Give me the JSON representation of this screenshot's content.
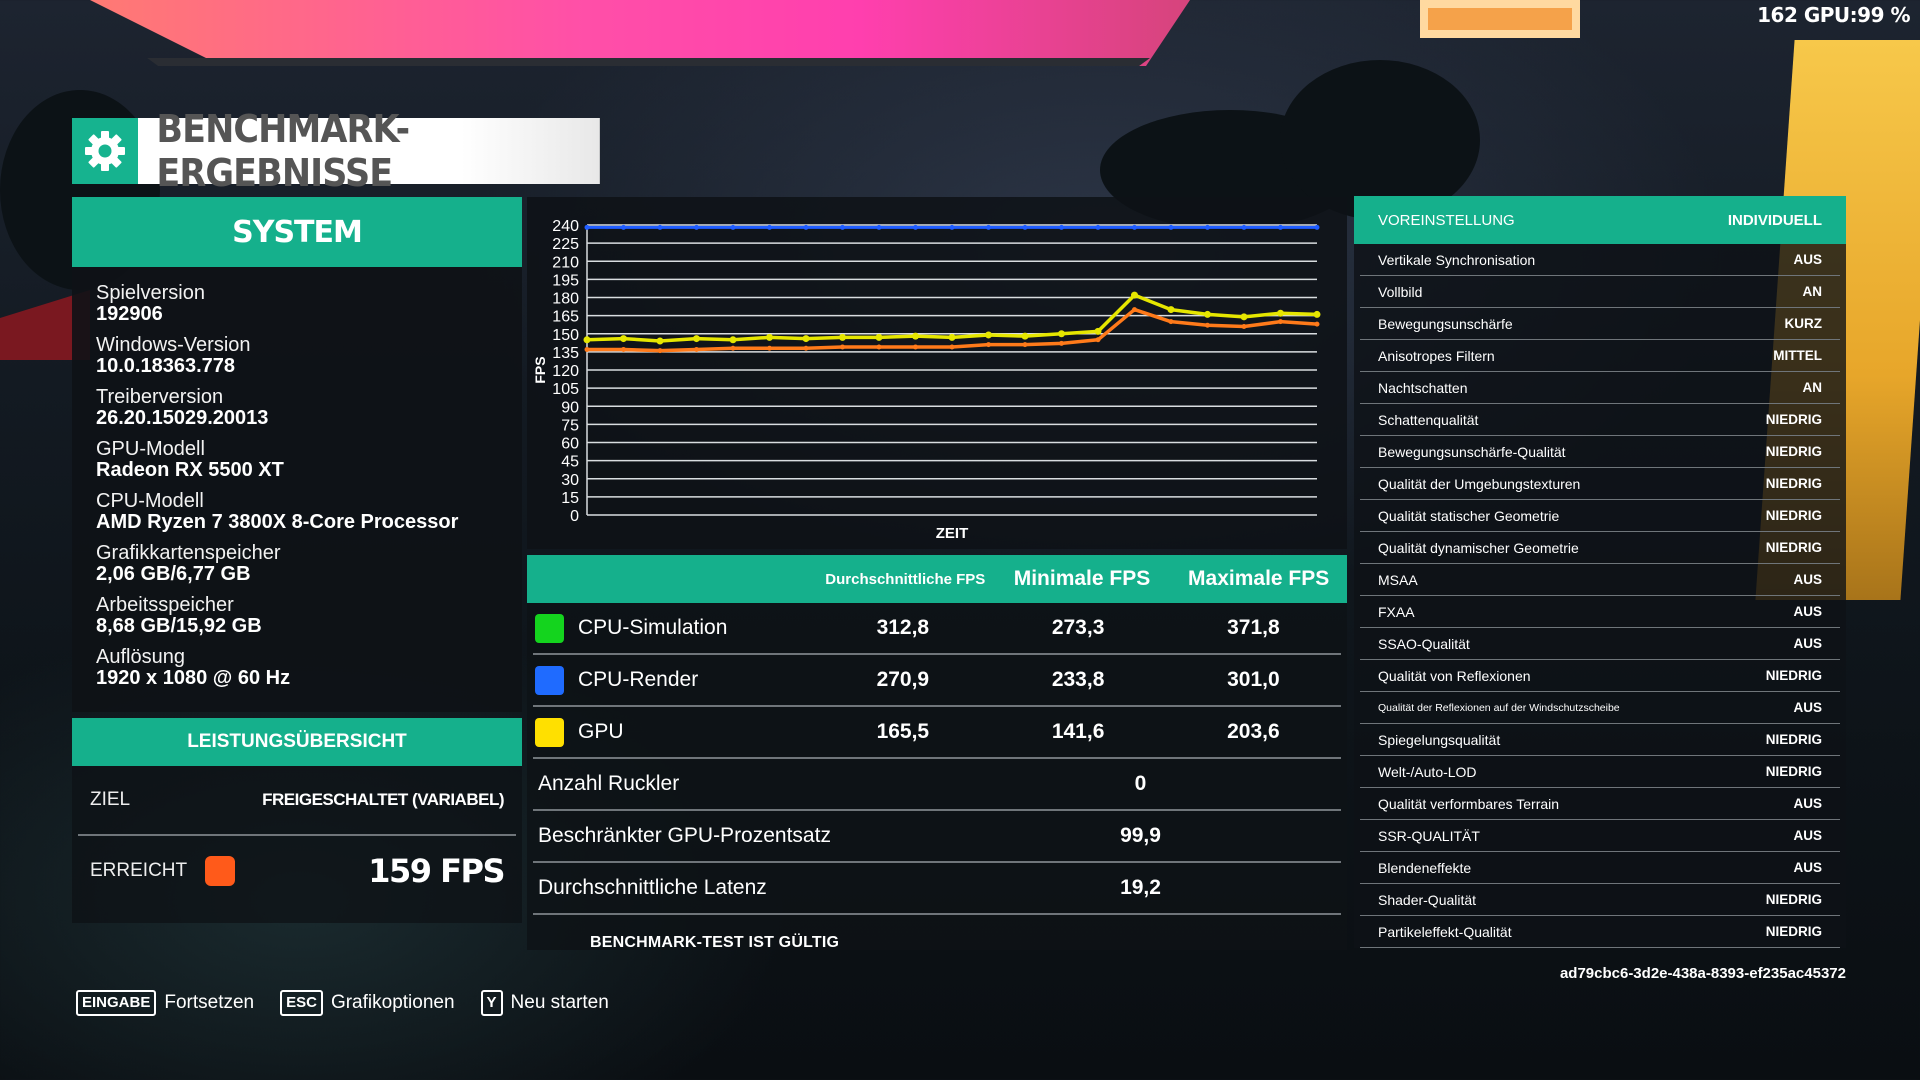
{
  "hud": {
    "topright": "162 GPU:99 %"
  },
  "title": "BENCHMARK-ERGEBNISSE",
  "system": {
    "header": "SYSTEM",
    "items": [
      {
        "label": "Spielversion",
        "value": "192906"
      },
      {
        "label": "Windows-Version",
        "value": "10.0.18363.778"
      },
      {
        "label": "Treiberversion",
        "value": "26.20.15029.20013"
      },
      {
        "label": "GPU-Modell",
        "value": "Radeon RX 5500 XT"
      },
      {
        "label": "CPU-Modell",
        "value": "AMD Ryzen 7 3800X 8-Core Processor"
      },
      {
        "label": "Grafikkartenspeicher",
        "value": "2,06 GB/6,77 GB"
      },
      {
        "label": "Arbeitsspeicher",
        "value": "8,68 GB/15,92 GB"
      },
      {
        "label": "Auflösung",
        "value": "1920 x 1080 @ 60 Hz"
      }
    ]
  },
  "performance": {
    "header": "LEISTUNGSÜBERSICHT",
    "target_label": "ZIEL",
    "target_value": "FREIGESCHALTET (VARIABEL)",
    "reached_label": "ERREICHT",
    "reached_value": "159 FPS",
    "reached_color": "#ff5a1a"
  },
  "chart_data": {
    "type": "line",
    "ylabel": "FPS",
    "xlabel": "ZEIT",
    "ylim": [
      0,
      240
    ],
    "yticks": [
      0,
      15,
      30,
      45,
      60,
      75,
      90,
      105,
      120,
      135,
      150,
      165,
      180,
      195,
      210,
      225,
      240
    ],
    "grid": true,
    "x": [
      0,
      5,
      10,
      15,
      20,
      25,
      30,
      35,
      40,
      45,
      50,
      55,
      60,
      65,
      70,
      75,
      80,
      85,
      90,
      95,
      100
    ],
    "series": [
      {
        "color": "#1f5cff",
        "values": [
          238,
          238,
          238,
          238,
          238,
          238,
          238,
          238,
          238,
          238,
          238,
          238,
          238,
          238,
          238,
          238,
          238,
          238,
          238,
          238,
          238
        ]
      },
      {
        "color": "#e6e600",
        "values": [
          145,
          146,
          144,
          146,
          145,
          147,
          146,
          147,
          147,
          148,
          147,
          149,
          148,
          150,
          152,
          182,
          170,
          166,
          164,
          167,
          166
        ]
      },
      {
        "color": "#ff7a1a",
        "values": [
          137,
          137,
          136,
          137,
          138,
          138,
          138,
          139,
          139,
          139,
          139,
          141,
          141,
          142,
          145,
          170,
          160,
          157,
          156,
          160,
          158
        ]
      }
    ]
  },
  "stats": {
    "headers": {
      "avg": "Durchschnittliche FPS",
      "min": "Minimale FPS",
      "max": "Maximale FPS"
    },
    "rows": [
      {
        "name": "CPU-Simulation",
        "color": "#14d41e",
        "avg": "312,8",
        "min": "273,3",
        "max": "371,8"
      },
      {
        "name": "CPU-Render",
        "color": "#1f6bff",
        "avg": "270,9",
        "min": "233,8",
        "max": "301,0"
      },
      {
        "name": "GPU",
        "color": "#ffe000",
        "avg": "165,5",
        "min": "141,6",
        "max": "203,6"
      }
    ],
    "extra": [
      {
        "name": "Anzahl Ruckler",
        "value": "0"
      },
      {
        "name": "Beschränkter GPU-Prozentsatz",
        "value": "99,9"
      },
      {
        "name": "Durchschnittliche Latenz",
        "value": "19,2"
      }
    ],
    "valid": "BENCHMARK-TEST IST GÜLTIG"
  },
  "settings": {
    "header_label": "VOREINSTELLUNG",
    "header_value": "INDIVIDUELL",
    "rows": [
      {
        "label": "Vertikale Synchronisation",
        "value": "AUS"
      },
      {
        "label": "Vollbild",
        "value": "AN"
      },
      {
        "label": "Bewegungsunschärfe",
        "value": "KURZ"
      },
      {
        "label": "Anisotropes Filtern",
        "value": "MITTEL"
      },
      {
        "label": "Nachtschatten",
        "value": "AN"
      },
      {
        "label": "Schattenqualität",
        "value": "NIEDRIG"
      },
      {
        "label": "Bewegungsunschärfe-Qualität",
        "value": "NIEDRIG"
      },
      {
        "label": "Qualität der Umgebungstexturen",
        "value": "NIEDRIG"
      },
      {
        "label": "Qualität statischer Geometrie",
        "value": "NIEDRIG"
      },
      {
        "label": "Qualität dynamischer Geometrie",
        "value": "NIEDRIG"
      },
      {
        "label": "MSAA",
        "value": "AUS"
      },
      {
        "label": "FXAA",
        "value": "AUS"
      },
      {
        "label": "SSAO-Qualität",
        "value": "AUS"
      },
      {
        "label": "Qualität von Reflexionen",
        "value": "NIEDRIG"
      },
      {
        "label": "Qualität der Reflexionen auf der Windschutzscheibe",
        "value": "AUS"
      },
      {
        "label": "Spiegelungsqualität",
        "value": "NIEDRIG"
      },
      {
        "label": "Welt-/Auto-LOD",
        "value": "NIEDRIG"
      },
      {
        "label": "Qualität verformbares Terrain",
        "value": "AUS"
      },
      {
        "label": "SSR-QUALITÄT",
        "value": "AUS"
      },
      {
        "label": "Blendeneffekte",
        "value": "AUS"
      },
      {
        "label": "Shader-Qualität",
        "value": "NIEDRIG"
      },
      {
        "label": "Partikeleffekt-Qualität",
        "value": "NIEDRIG"
      }
    ],
    "uuid": "ad79cbc6-3d2e-438a-8393-ef235ac45372"
  },
  "footer": {
    "items": [
      {
        "key": "EINGABE",
        "label": "Fortsetzen"
      },
      {
        "key": "ESC",
        "label": "Grafikoptionen"
      },
      {
        "key": "Y",
        "label": "Neu starten"
      }
    ]
  }
}
